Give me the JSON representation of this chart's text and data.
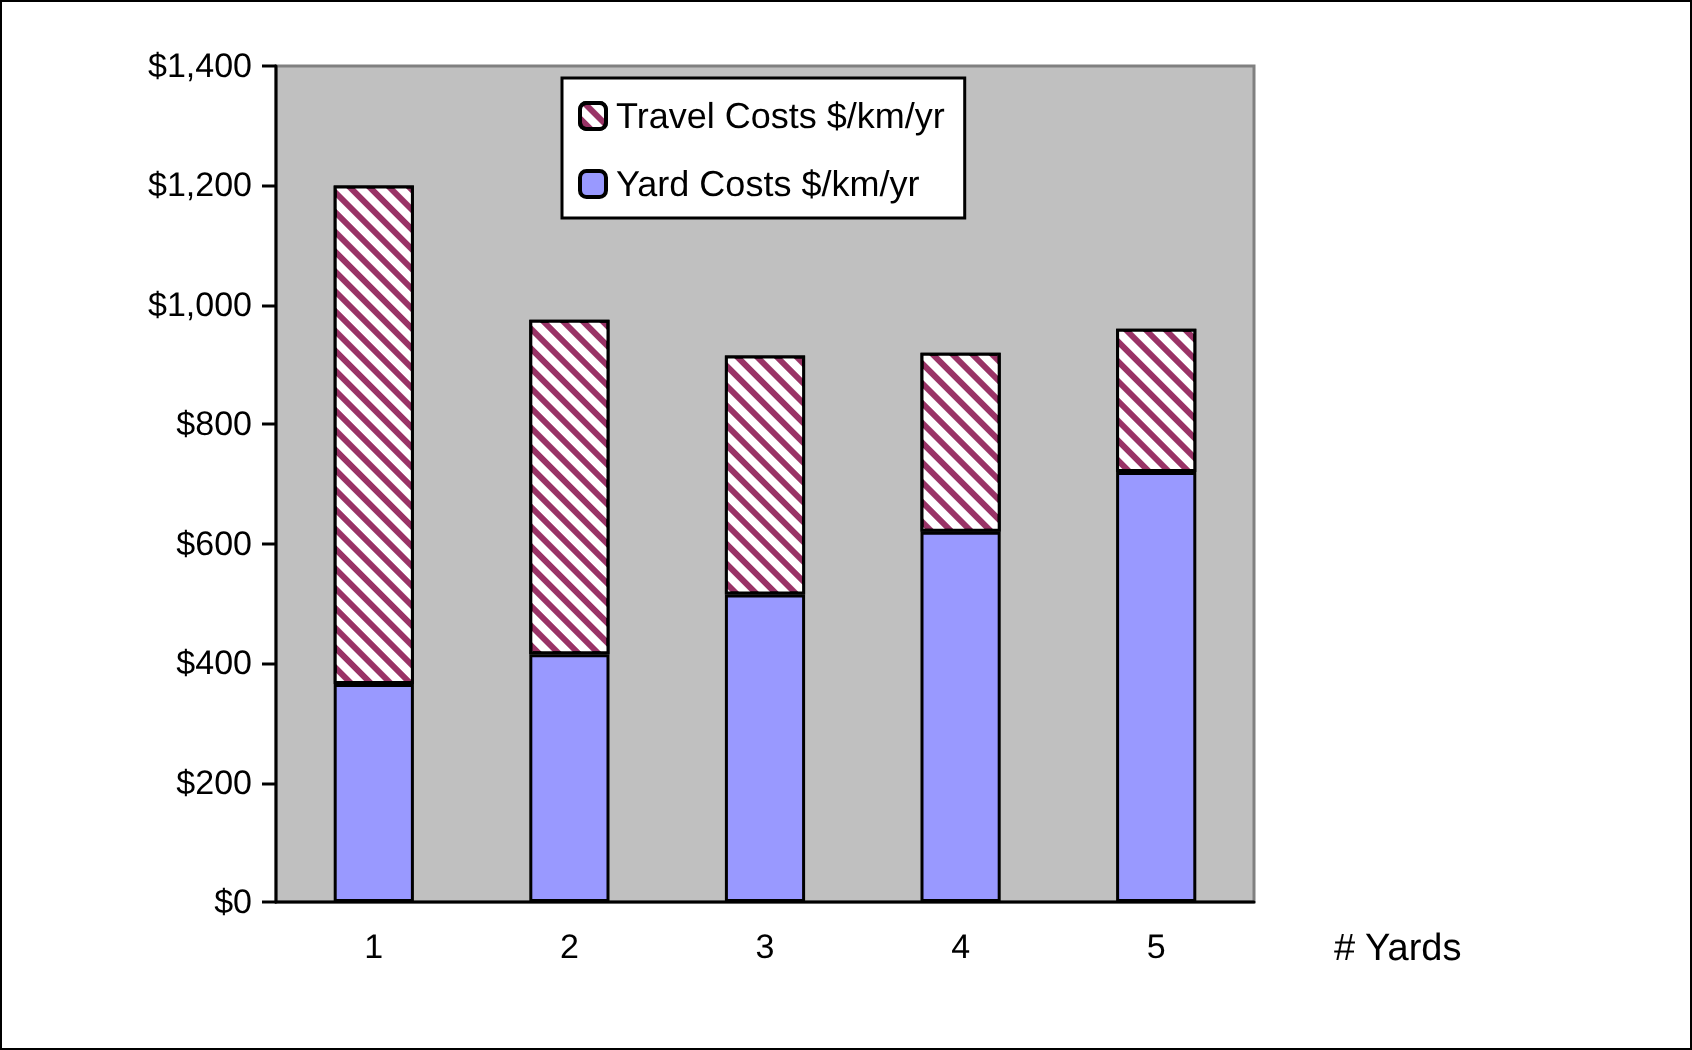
{
  "chart_data": {
    "type": "bar",
    "stacked": true,
    "xlabel": "# Yards",
    "categories": [
      "1",
      "2",
      "3",
      "4",
      "5"
    ],
    "series": [
      {
        "name": "Yard Costs $/km/yr",
        "color": "#9999ff",
        "values": [
          365,
          415,
          515,
          620,
          720
        ]
      },
      {
        "name": "Travel Costs $/km/yr",
        "color": "#993366",
        "values": [
          835,
          560,
          400,
          300,
          240
        ]
      }
    ],
    "ylim": [
      0,
      1400
    ],
    "yticks": [
      {
        "value": 0,
        "label": "$0"
      },
      {
        "value": 200,
        "label": "$200"
      },
      {
        "value": 400,
        "label": "$400"
      },
      {
        "value": 600,
        "label": "$600"
      },
      {
        "value": 800,
        "label": "$800"
      },
      {
        "value": 1000,
        "label": "$1,000"
      },
      {
        "value": 1200,
        "label": "$1,200"
      },
      {
        "value": 1400,
        "label": "$1,400"
      }
    ],
    "grid": false,
    "legend": "top"
  }
}
